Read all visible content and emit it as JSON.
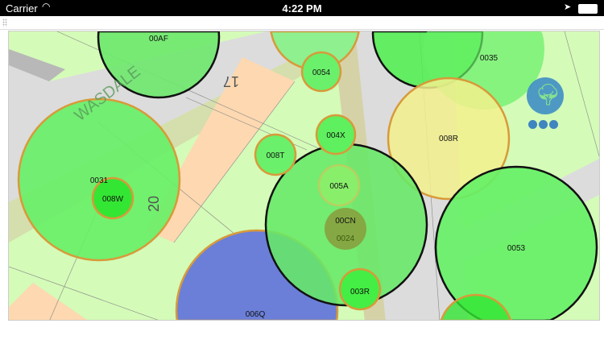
{
  "status_bar": {
    "carrier": "Carrier",
    "time": "4:22 PM",
    "wifi_icon": "wifi-icon",
    "location_icon": "location-arrow-icon",
    "battery_icon": "battery-icon"
  },
  "map": {
    "street_name": "WASDALE",
    "lot_numbers": [
      "17",
      "20"
    ],
    "trees": [
      {
        "id": "00AF",
        "kind": "canopy-outline",
        "color": "#6de86d"
      },
      {
        "id": "0054",
        "color": "#6af06a"
      },
      {
        "id": "0035",
        "kind": "canopy-outline",
        "color": "#4cf04c"
      },
      {
        "id": "004X",
        "color": "#5ef05e"
      },
      {
        "id": "008R",
        "color": "#f2f08c"
      },
      {
        "id": "008T",
        "color": "#6af06a"
      },
      {
        "id": "0031",
        "color": "#66f066"
      },
      {
        "id": "008W",
        "color": "#33e633"
      },
      {
        "id": "005A",
        "color": "#8ef06a"
      },
      {
        "id": "00CN",
        "kind": "canopy-outline",
        "color": "#66e866"
      },
      {
        "id": "0024",
        "color": "#8a9c3c"
      },
      {
        "id": "0053",
        "kind": "canopy-outline",
        "color": "#66f066"
      },
      {
        "id": "003R",
        "color": "#44ee44"
      },
      {
        "id": "006Q",
        "color": "#6b7fd8"
      }
    ],
    "logo_icon": "tree-logo-icon",
    "more_icon": "more-dots-icon"
  }
}
